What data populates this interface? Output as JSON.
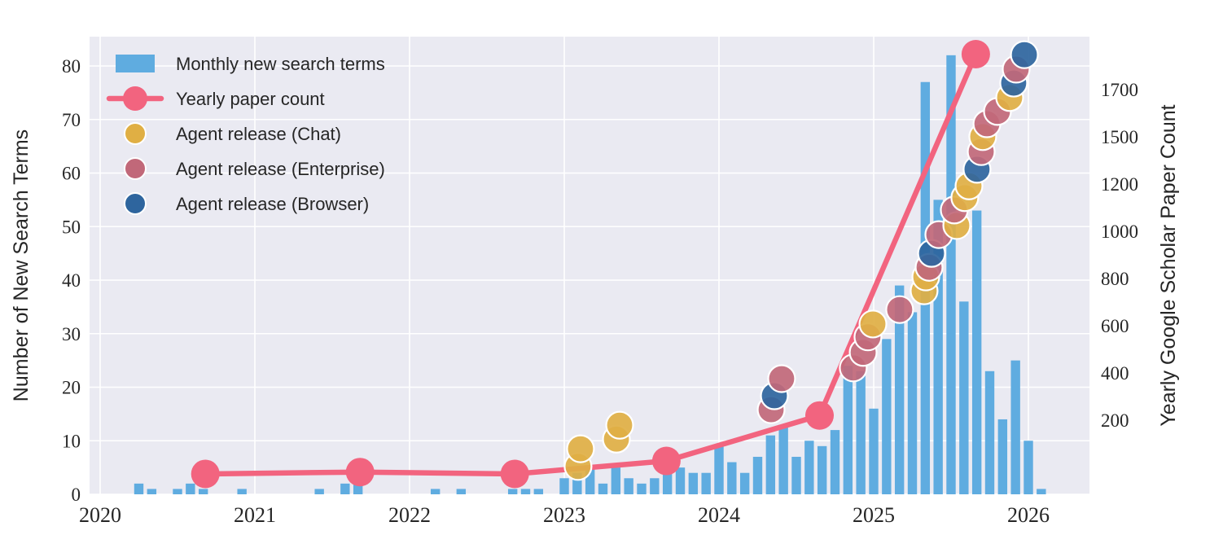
{
  "figure": {
    "background": "#ffffff",
    "plot_background": "#eaeaf2",
    "grid_color": "#ffffff",
    "text_color": "#262626"
  },
  "colors": {
    "bar": "#5face0",
    "paper_line": "#f2647f",
    "chat": "#e0af44",
    "enterprise": "#c16879",
    "browser": "#2e659e",
    "dot_outline": "#ffffff"
  },
  "left_axis": {
    "label": "Number of New Search Terms",
    "ticks": [
      0,
      10,
      20,
      30,
      40,
      50,
      60,
      70,
      80
    ]
  },
  "right_axis": {
    "label": "Yearly Google Scholar Paper Count",
    "ticks": [
      200,
      400,
      600,
      800,
      1000,
      1200,
      1500,
      1700
    ]
  },
  "x_axis": {
    "ticks": [
      2020,
      2021,
      2022,
      2023,
      2024,
      2025,
      2026
    ]
  },
  "legend": [
    {
      "type": "bar",
      "label": "Monthly new search terms"
    },
    {
      "type": "line",
      "label": "Yearly paper count"
    },
    {
      "type": "chat",
      "label": "Agent release (Chat)"
    },
    {
      "type": "enterprise",
      "label": "Agent release (Enterprise)"
    },
    {
      "type": "browser",
      "label": "Agent release (Browser)"
    }
  ],
  "chart_data": [
    {
      "type": "bar",
      "name": "Monthly new search terms",
      "axis": "left",
      "start_month": "2020-01",
      "monthly_values": [
        0,
        0,
        0,
        2,
        1,
        0,
        1,
        2,
        1,
        0,
        0,
        1,
        0,
        0,
        0,
        0,
        0,
        1,
        0,
        2,
        2,
        0,
        0,
        0,
        0,
        0,
        1,
        0,
        1,
        0,
        0,
        0,
        1,
        1,
        1,
        0,
        3,
        4,
        5,
        2,
        5,
        3,
        2,
        3,
        4,
        5,
        4,
        4,
        9,
        6,
        4,
        7,
        11,
        13,
        7,
        10,
        9,
        12,
        24,
        23,
        16,
        29,
        39,
        34,
        77,
        55,
        82,
        36,
        53,
        23,
        14,
        25,
        10,
        1
      ]
    },
    {
      "type": "line",
      "name": "Yearly paper count",
      "axis": "right",
      "x": [
        2020.68,
        2021.68,
        2022.68,
        2023.66,
        2024.65,
        2025.66
      ],
      "y": [
        55,
        60,
        55,
        90,
        220,
        1850
      ]
    },
    {
      "type": "scatter",
      "name": "Agent release (Chat)",
      "axis": "left",
      "points": [
        [
          2023.089,
          5.2
        ],
        [
          2023.105,
          8.5
        ],
        [
          2023.337,
          10.3
        ],
        [
          2023.358,
          12.9
        ],
        [
          2024.995,
          31.8
        ],
        [
          2025.326,
          38.0
        ],
        [
          2025.337,
          40.6
        ],
        [
          2025.537,
          50.2
        ],
        [
          2025.589,
          55.4
        ],
        [
          2025.616,
          57.6
        ],
        [
          2025.705,
          66.8
        ],
        [
          2025.879,
          74.1
        ]
      ]
    },
    {
      "type": "scatter",
      "name": "Agent release (Enterprise)",
      "axis": "left",
      "points": [
        [
          2024.337,
          15.8
        ],
        [
          2024.405,
          21.6
        ],
        [
          2024.868,
          23.6
        ],
        [
          2024.932,
          26.5
        ],
        [
          2024.963,
          29.4
        ],
        [
          2025.168,
          34.5
        ],
        [
          2025.358,
          42.4
        ],
        [
          2025.421,
          48.5
        ],
        [
          2025.521,
          53.1
        ],
        [
          2025.695,
          64.0
        ],
        [
          2025.732,
          69.2
        ],
        [
          2025.8,
          71.5
        ],
        [
          2025.921,
          79.4
        ]
      ]
    },
    {
      "type": "scatter",
      "name": "Agent release (Browser)",
      "axis": "left",
      "points": [
        [
          2024.358,
          18.4
        ],
        [
          2025.374,
          45.0
        ],
        [
          2025.668,
          60.7
        ],
        [
          2025.905,
          76.8
        ],
        [
          2025.974,
          82.1
        ]
      ]
    }
  ]
}
